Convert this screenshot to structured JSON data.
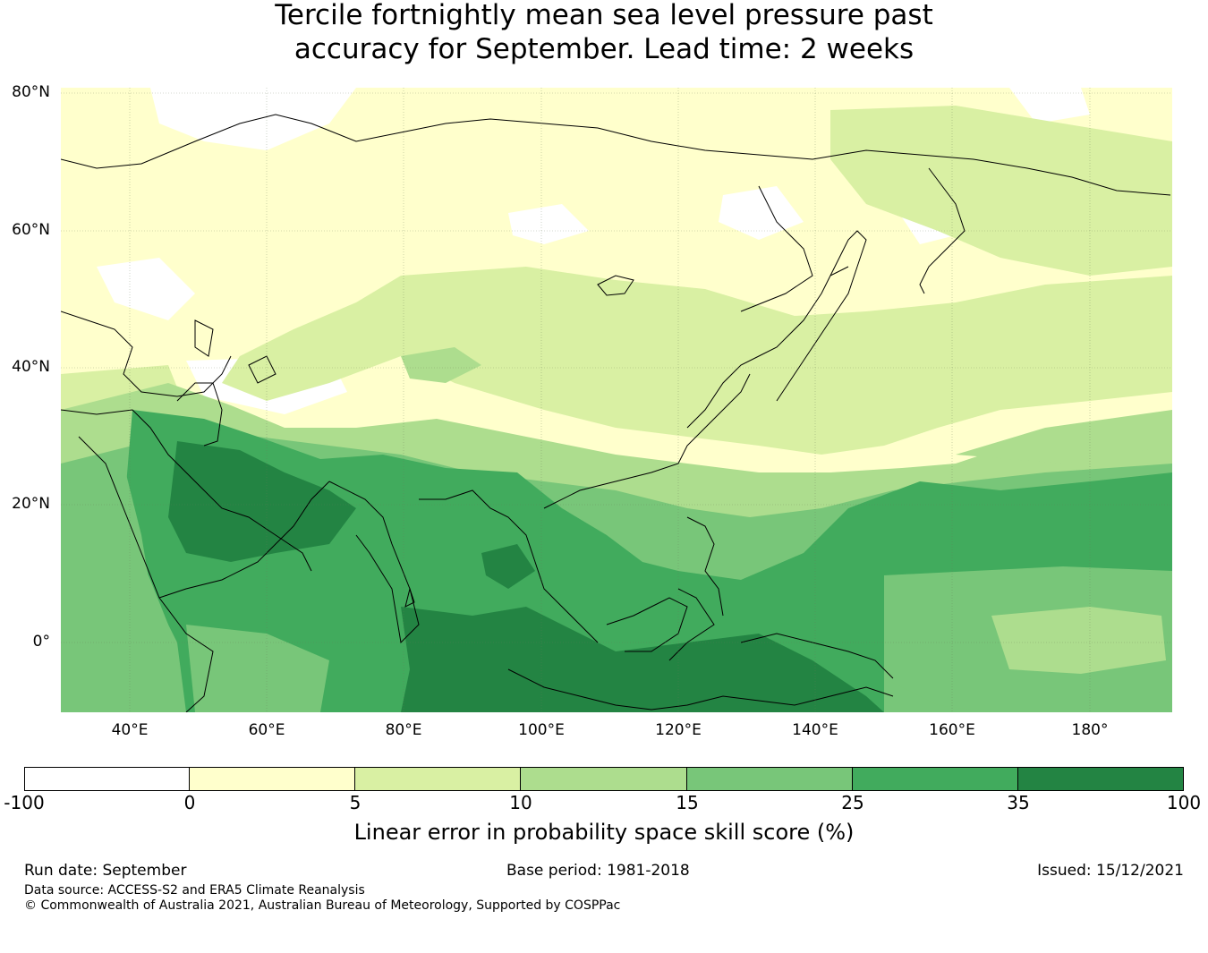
{
  "title": {
    "line1": "Tercile fortnightly mean sea level pressure past",
    "line2": "accuracy for September. Lead time: 2 weeks"
  },
  "map": {
    "lat_labels": [
      "80°N",
      "60°N",
      "40°N",
      "20°N",
      "0°"
    ],
    "lon_labels": [
      "40°E",
      "60°E",
      "80°E",
      "100°E",
      "120°E",
      "140°E",
      "160°E",
      "180°"
    ],
    "lat_range": [
      -10,
      80
    ],
    "lon_range": [
      30,
      192
    ]
  },
  "legend": {
    "title": "Linear error in probability space skill score (%)",
    "ticks": [
      "-100",
      "0",
      "5",
      "10",
      "15",
      "25",
      "35",
      "100"
    ],
    "bins": [
      {
        "from": -100,
        "to": 0,
        "color": "#ffffff"
      },
      {
        "from": 0,
        "to": 5,
        "color": "#ffffcc"
      },
      {
        "from": 5,
        "to": 10,
        "color": "#d9f0a3"
      },
      {
        "from": 10,
        "to": 15,
        "color": "#addd8e"
      },
      {
        "from": 15,
        "to": 25,
        "color": "#78c679"
      },
      {
        "from": 25,
        "to": 35,
        "color": "#41ab5d"
      },
      {
        "from": 35,
        "to": 100,
        "color": "#238443"
      }
    ]
  },
  "footer": {
    "run_date": "Run date: September",
    "base_period": "Base period: 1981-2018",
    "issued": "Issued: 15/12/2021",
    "data_source": "Data source: ACCESS-S2 and ERA5 Climate Reanalysis",
    "copyright": "© Commonwealth of Australia 2021, Australian Bureau of Meteorology, Supported by COSPPac"
  }
}
